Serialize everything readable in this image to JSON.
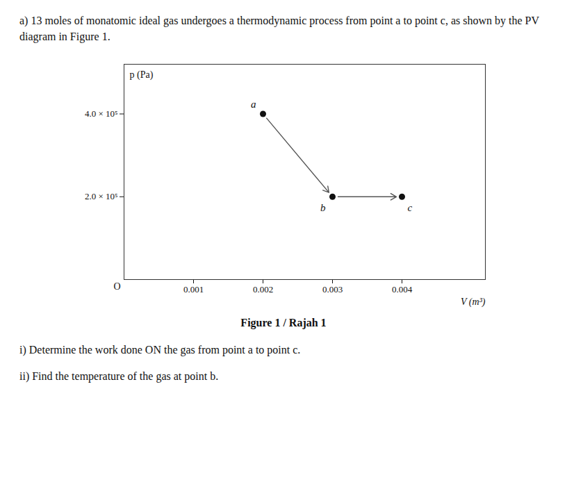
{
  "chart_data": {
    "type": "line",
    "title": "a) 13 moles of monatomic ideal gas undergoes a thermodynamic process from point a to point c, as shown by the PV diagram in Figure 1.",
    "caption": "Figure 1 / Rajah 1",
    "annotations": [
      "i) Determine the work done ON the gas from point a to point c.",
      "ii) Find the temperature of the gas at point b."
    ],
    "xlabel": "V (m³)",
    "ylabel": "p (Pa)",
    "origin_label": "O",
    "x": [
      0.002,
      0.003,
      0.004
    ],
    "values": [
      400000,
      200000,
      200000
    ],
    "point_labels": [
      "a",
      "b",
      "c"
    ],
    "color": "#555555",
    "marker": "dot",
    "xlim": [
      0.0,
      0.0052
    ],
    "ylim": [
      0.0,
      520000
    ],
    "xticks": [
      0.001,
      0.002,
      0.003,
      0.004
    ],
    "yticks": [
      {
        "value": 200000,
        "label": "2.0 × 10⁵"
      },
      {
        "value": 400000,
        "label": "4.0 × 10⁵"
      }
    ],
    "grid": false
  }
}
